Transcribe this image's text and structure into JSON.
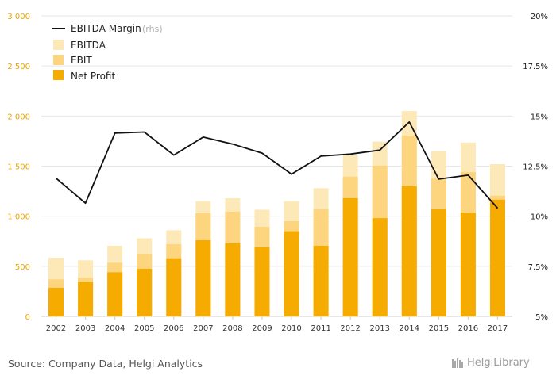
{
  "chart_data": {
    "type": "bar",
    "stacked": true,
    "categories": [
      "2002",
      "2003",
      "2004",
      "2005",
      "2006",
      "2007",
      "2008",
      "2009",
      "2010",
      "2011",
      "2012",
      "2013",
      "2014",
      "2015",
      "2016",
      "2017"
    ],
    "series": [
      {
        "name": "EBITDA",
        "color": "#fde9b8",
        "values": [
          585,
          560,
          705,
          780,
          860,
          1150,
          1180,
          1065,
          1150,
          1280,
          1610,
          1745,
          2050,
          1650,
          1735,
          1520
        ]
      },
      {
        "name": "EBIT",
        "color": "#fdd57e",
        "values": [
          370,
          385,
          535,
          625,
          720,
          1030,
          1045,
          895,
          950,
          1070,
          1395,
          1505,
          1805,
          1375,
          1440,
          1205
        ]
      },
      {
        "name": "Net Profit",
        "color": "#f5ab00",
        "values": [
          285,
          345,
          440,
          475,
          580,
          760,
          730,
          690,
          850,
          705,
          1180,
          980,
          1300,
          1070,
          1035,
          1165
        ]
      }
    ],
    "line_series": {
      "name": "EBITDA Margin",
      "name_note": "(rhs)",
      "color": "#111111",
      "values": [
        11.9,
        10.65,
        14.15,
        14.2,
        13.05,
        13.95,
        13.6,
        13.15,
        12.1,
        13.0,
        13.1,
        13.3,
        14.7,
        11.85,
        12.05,
        10.4
      ]
    },
    "y_left": {
      "min": 0,
      "max": 3000,
      "ticks": [
        "0",
        "500",
        "1 000",
        "1 500",
        "2 000",
        "2 500",
        "3 000"
      ],
      "tick_values": [
        0,
        500,
        1000,
        1500,
        2000,
        2500,
        3000
      ],
      "color": "#e8a800"
    },
    "y_right": {
      "min": 5,
      "max": 20,
      "ticks": [
        "5%",
        "7.5%",
        "10%",
        "12.5%",
        "15%",
        "17.5%",
        "20%"
      ],
      "tick_values": [
        5,
        7.5,
        10,
        12.5,
        15,
        17.5,
        20
      ]
    },
    "grid": true,
    "legend_position": "top-left"
  },
  "source_text": "Source: Company Data, Helgi Analytics",
  "logo_text": "HelgiLibrary"
}
